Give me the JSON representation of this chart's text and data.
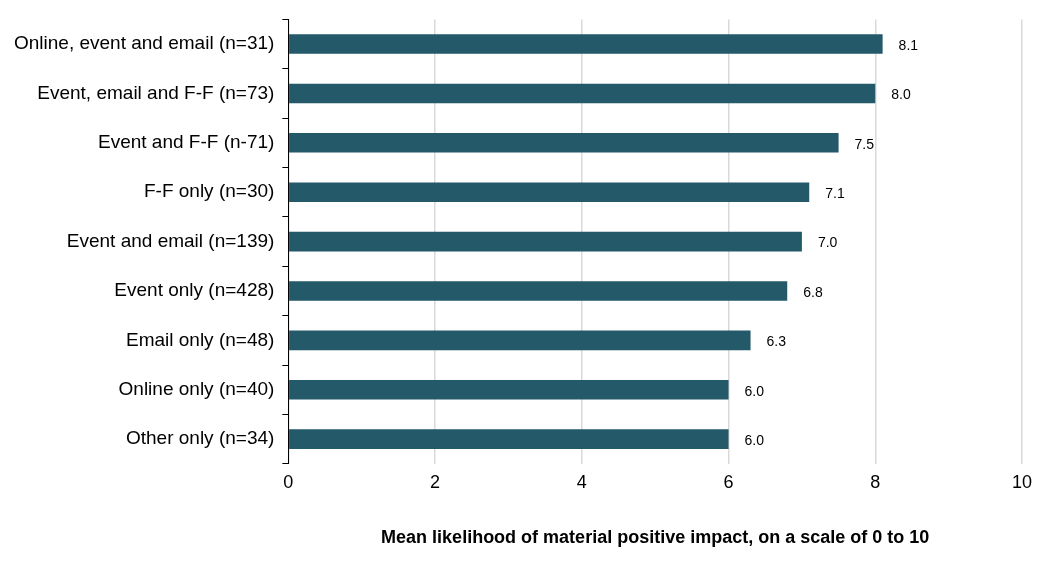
{
  "chart_data": {
    "type": "bar",
    "orientation": "horizontal",
    "xlabel": "Mean likelihood of material positive impact, on a scale of 0 to 10",
    "categories": [
      "Online, event and email (n=31)",
      "Event, email and F-F (n=73)",
      "Event and F-F (n-71)",
      "F-F only (n=30)",
      "Event and email (n=139)",
      "Event only (n=428)",
      "Email only (n=48)",
      "Online only (n=40)",
      "Other only (n=34)"
    ],
    "values": [
      8.1,
      8.0,
      7.5,
      7.1,
      7.0,
      6.8,
      6.3,
      6.0,
      6.0
    ],
    "color": "#235968",
    "xlim": [
      0,
      10
    ],
    "xticks": [
      0,
      2,
      4,
      6,
      8,
      10
    ],
    "value_labels": [
      "8.1",
      "8.0",
      "7.5",
      "7.1",
      "7.0",
      "6.8",
      "6.3",
      "6.0",
      "6.0"
    ],
    "grid": "x",
    "legend": false
  }
}
